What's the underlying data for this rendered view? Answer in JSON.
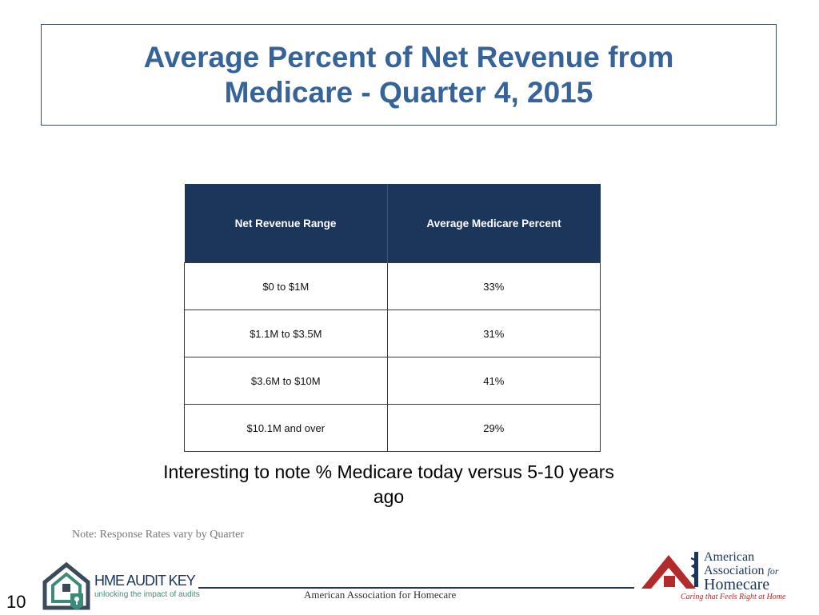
{
  "slide": {
    "title": "Average Percent of Net Revenue from Medicare - Quarter 4, 2015",
    "page_number": "10"
  },
  "table": {
    "headers": [
      "Net Revenue Range",
      "Average Medicare Percent"
    ],
    "rows": [
      [
        "$0 to $1M",
        "33%"
      ],
      [
        "$1.1M to $3.5M",
        "31%"
      ],
      [
        "$3.6M to $10M",
        "41%"
      ],
      [
        "$10.1M and over",
        "29%"
      ]
    ]
  },
  "notes": {
    "main": "Interesting to note % Medicare today versus 5-10 years ago",
    "small": "Note: Response Rates vary by Quarter"
  },
  "footer": {
    "center_text": "American Association for Homecare",
    "hme_logo_name": "HME AUDIT KEY",
    "hme_logo_tagline": "unlocking the impact of audits",
    "aah_logo_line1": "American",
    "aah_logo_line2": "Association",
    "aah_logo_for": "for",
    "aah_logo_line3": "Homecare",
    "aah_tagline": "Caring that Feels Right at Home"
  },
  "colors": {
    "title": "#36639a",
    "table_header_bg": "#1b355b",
    "accent_red": "#b22a2a",
    "accent_teal": "#3e8a7a"
  }
}
